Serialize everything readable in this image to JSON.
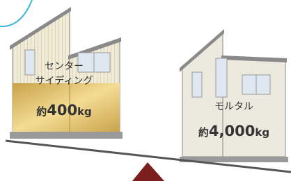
{
  "left_house": {
    "label_lines": [
      "センター",
      "サイディング"
    ],
    "weight": {
      "prefix": "約",
      "number": "400",
      "unit": "kg"
    }
  },
  "right_house": {
    "label": "モルタル",
    "weight": {
      "prefix": "約",
      "number": "4,000",
      "unit": "kg"
    }
  }
}
